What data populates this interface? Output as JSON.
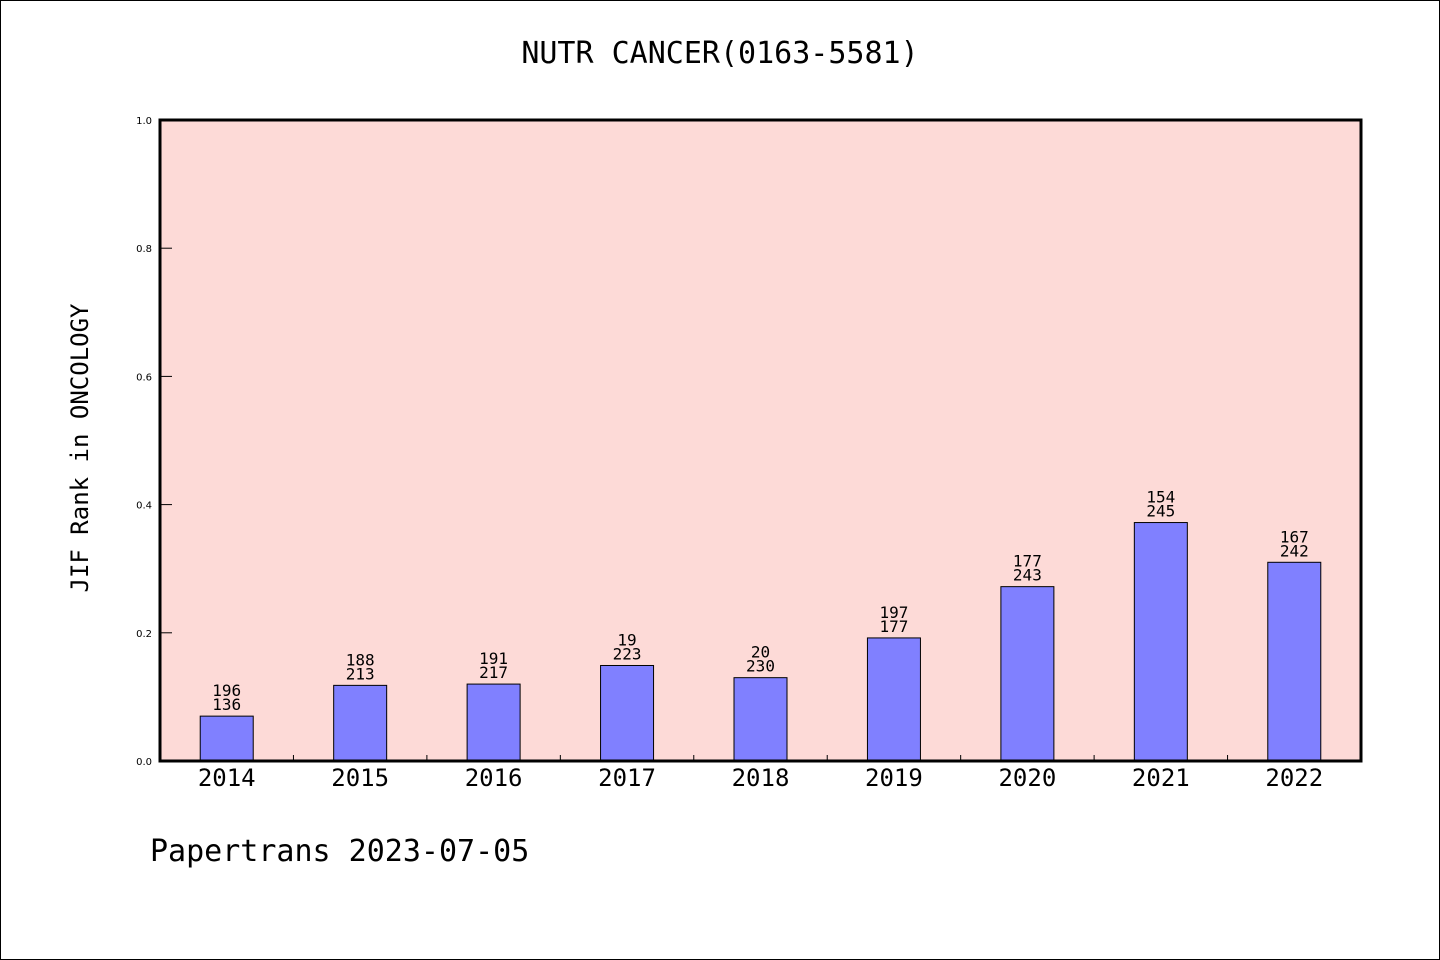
{
  "chart_data": {
    "type": "bar",
    "title": "NUTR CANCER(0163-5581)",
    "xlabel": "",
    "ylabel": "JIF Rank in ONCOLOGY",
    "ylim": [
      0,
      1.0
    ],
    "yticks": [
      "0.0",
      "0.2",
      "0.4",
      "0.6",
      "0.8",
      "1.0"
    ],
    "categories": [
      "2014",
      "2015",
      "2016",
      "2017",
      "2018",
      "2019",
      "2020",
      "2021",
      "2022"
    ],
    "values": [
      0.07,
      0.118,
      0.12,
      0.149,
      0.13,
      0.192,
      0.272,
      0.372,
      0.31
    ],
    "bar_labels": [
      [
        "196",
        "136"
      ],
      [
        "188",
        "213"
      ],
      [
        "191",
        "217"
      ],
      [
        "19",
        "223"
      ],
      [
        "20",
        "230"
      ],
      [
        "197",
        "177"
      ],
      [
        "177",
        "243"
      ],
      [
        "154",
        "245"
      ],
      [
        "167",
        "242"
      ]
    ],
    "grid": false,
    "colors": {
      "background": "#fddad7",
      "bar": "#8080ff",
      "bar_edge": "#000000"
    }
  },
  "footer": {
    "text": "Papertrans 2023-07-05"
  }
}
